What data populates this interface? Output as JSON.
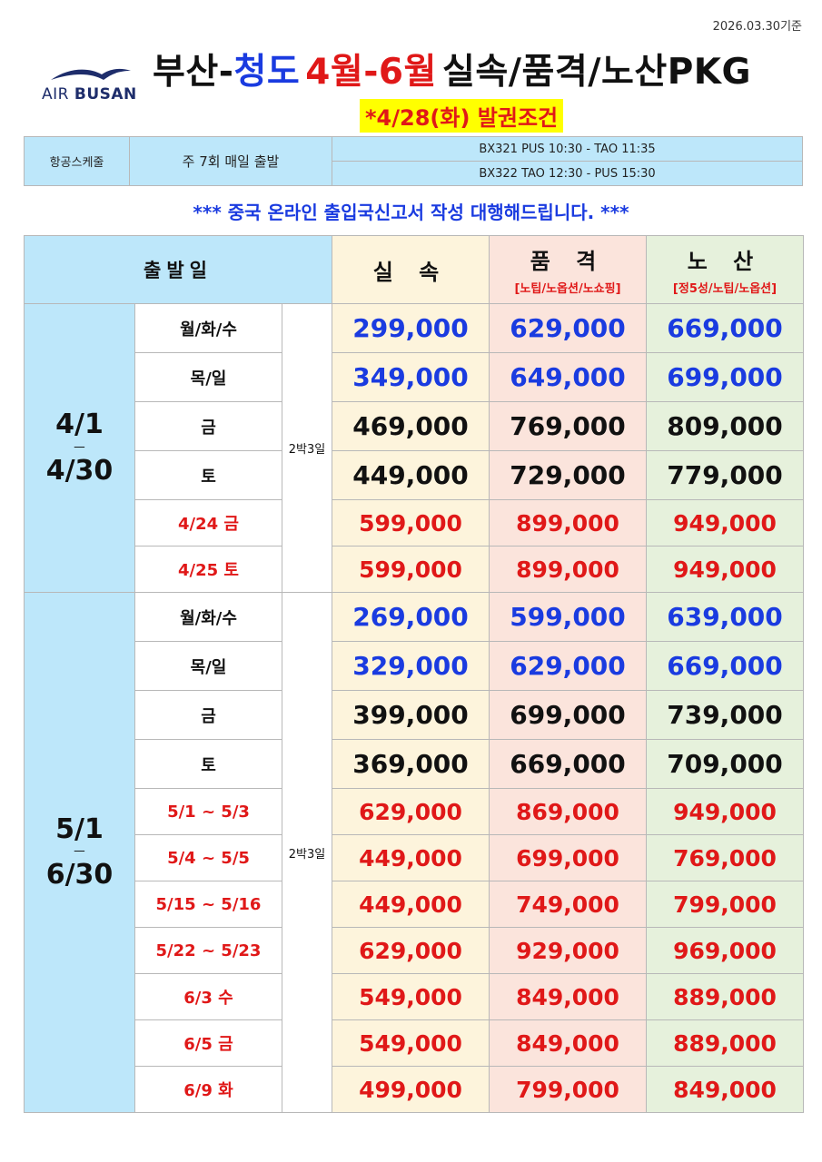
{
  "date_note": "2026.03.30기준",
  "logo": {
    "text_light": "AIR",
    "text_bold": "BUSAN"
  },
  "title": {
    "part1": "부산-",
    "part2": "청도",
    "part3": "4월-6월",
    "part4": "실속/품격/노산PKG"
  },
  "subtitle": "*4/28(화) 발권조건",
  "schedule": {
    "label": "항공스케줄",
    "frequency": "주 7회 매일 출발",
    "flights": [
      "BX321 PUS 10:30 - TAO 11:35",
      "BX322 TAO 12:30 - PUS 15:30"
    ]
  },
  "notice": "*** 중국 온라인 출입국신고서 작성 대행해드립니다. ***",
  "table": {
    "header": {
      "departure": "출발일",
      "col1": "실 속",
      "col2": "품 격",
      "col2_sub": "[노팁/노옵션/노쇼핑]",
      "col3": "노 산",
      "col3_sub": "[정5성/노팁/노옵션]"
    },
    "groups": [
      {
        "period_start": "4/1",
        "period_dash": "ㅡ",
        "period_end": "4/30",
        "nights": "2박3일",
        "rows": [
          {
            "day": "월/화/수",
            "color": "blue",
            "prices": [
              "299,000",
              "629,000",
              "669,000"
            ]
          },
          {
            "day": "목/일",
            "color": "blue",
            "prices": [
              "349,000",
              "649,000",
              "699,000"
            ]
          },
          {
            "day": "금",
            "color": "black",
            "prices": [
              "469,000",
              "769,000",
              "809,000"
            ]
          },
          {
            "day": "토",
            "color": "black",
            "prices": [
              "449,000",
              "729,000",
              "779,000"
            ]
          },
          {
            "day": "4/24 금",
            "color": "red",
            "prices": [
              "599,000",
              "899,000",
              "949,000"
            ]
          },
          {
            "day": "4/25 토",
            "color": "red",
            "prices": [
              "599,000",
              "899,000",
              "949,000"
            ]
          }
        ]
      },
      {
        "period_start": "5/1",
        "period_dash": "ㅡ",
        "period_end": "6/30",
        "nights": "2박3일",
        "rows": [
          {
            "day": "월/화/수",
            "color": "blue",
            "prices": [
              "269,000",
              "599,000",
              "639,000"
            ]
          },
          {
            "day": "목/일",
            "color": "blue",
            "prices": [
              "329,000",
              "629,000",
              "669,000"
            ]
          },
          {
            "day": "금",
            "color": "black",
            "prices": [
              "399,000",
              "699,000",
              "739,000"
            ]
          },
          {
            "day": "토",
            "color": "black",
            "prices": [
              "369,000",
              "669,000",
              "709,000"
            ]
          },
          {
            "day": "5/1 ~ 5/3",
            "color": "red",
            "prices": [
              "629,000",
              "869,000",
              "949,000"
            ]
          },
          {
            "day": "5/4 ~ 5/5",
            "color": "red",
            "prices": [
              "449,000",
              "699,000",
              "769,000"
            ]
          },
          {
            "day": "5/15 ~ 5/16",
            "color": "red",
            "prices": [
              "449,000",
              "749,000",
              "799,000"
            ]
          },
          {
            "day": "5/22 ~ 5/23",
            "color": "red",
            "prices": [
              "629,000",
              "929,000",
              "969,000"
            ]
          },
          {
            "day": "6/3 수",
            "color": "red",
            "prices": [
              "549,000",
              "849,000",
              "889,000"
            ]
          },
          {
            "day": "6/5 금",
            "color": "red",
            "prices": [
              "549,000",
              "849,000",
              "889,000"
            ]
          },
          {
            "day": "6/9 화",
            "color": "red",
            "prices": [
              "499,000",
              "799,000",
              "849,000"
            ]
          }
        ]
      }
    ]
  },
  "colors": {
    "header_blue": "#bde7fa",
    "col1_bg": "#fdf4dc",
    "col2_bg": "#fbe4dc",
    "col3_bg": "#e6f1dc",
    "price_blue": "#1a3be0",
    "price_red": "#e01818"
  }
}
